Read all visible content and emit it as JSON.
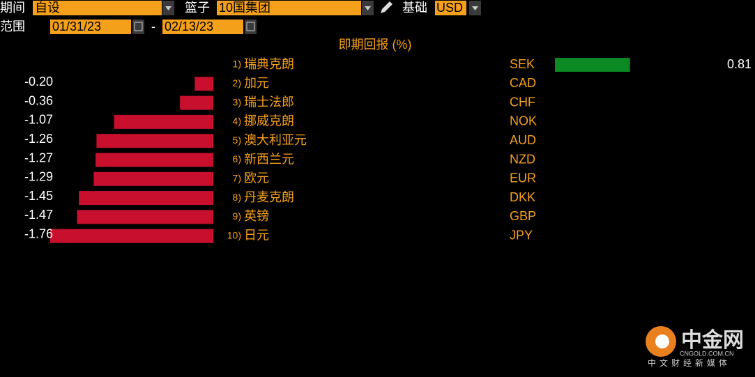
{
  "controls": {
    "period_label": "期间",
    "period_value": "自设",
    "basket_label": "篮子",
    "basket_value": "10国集团",
    "base_label": "基础",
    "base_value": "USD",
    "range_label": "范围",
    "start_date": "01/31/23",
    "range_separator": "-",
    "end_date": "02/13/23"
  },
  "chart_data": {
    "type": "diverging-bar",
    "title": "即期回报 (%)",
    "ranks": [
      "1)",
      "2)",
      "3)",
      "4)",
      "5)",
      "6)",
      "7)",
      "8)",
      "9)",
      "10)"
    ],
    "categories": [
      "瑞典克朗",
      "加元",
      "瑞士法郎",
      "挪威克朗",
      "澳大利亚元",
      "新西兰元",
      "欧元",
      "丹麦克朗",
      "英镑",
      "日元"
    ],
    "codes": [
      "SEK",
      "CAD",
      "CHF",
      "NOK",
      "AUD",
      "NZD",
      "EUR",
      "DKK",
      "GBP",
      "JPY"
    ],
    "values": [
      0.81,
      -0.2,
      -0.36,
      -1.07,
      -1.26,
      -1.27,
      -1.29,
      -1.45,
      -1.47,
      -1.76
    ],
    "value_labels": [
      "0.81",
      "-0.20",
      "-0.36",
      "-1.07",
      "-1.26",
      "-1.27",
      "-1.29",
      "-1.45",
      "-1.47",
      "-1.76"
    ],
    "positive_color": "#0b8a23",
    "negative_color": "#c8102e"
  },
  "watermark": {
    "brand": "中金网",
    "site": "CNGOLD.COM.CN",
    "slogan": "中文财经新媒体"
  }
}
